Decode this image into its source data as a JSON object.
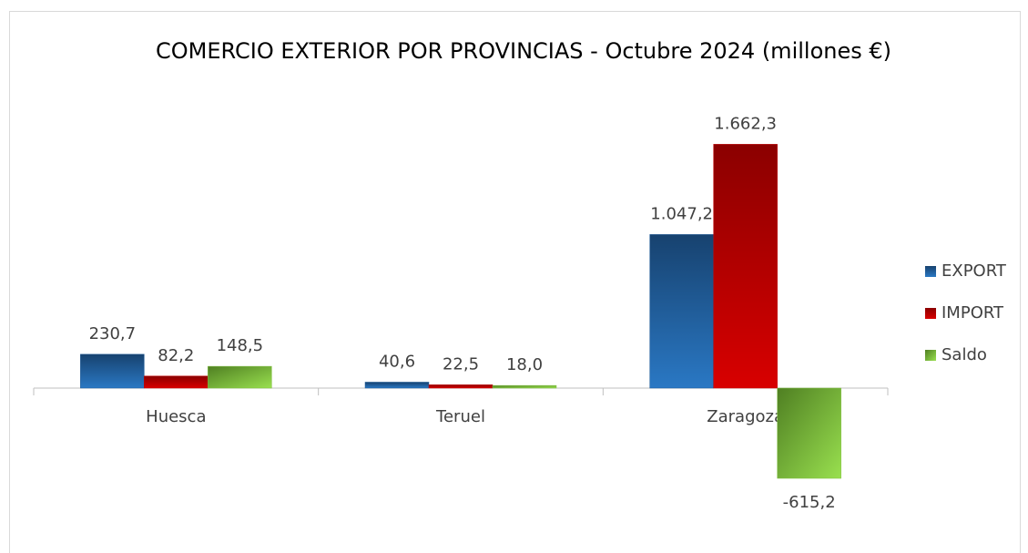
{
  "chart_data": {
    "type": "bar",
    "title": "COMERCIO EXTERIOR POR PROVINCIAS  - Octubre 2024 (millones €)",
    "categories": [
      "Huesca",
      "Teruel",
      "Zaragoza"
    ],
    "series": [
      {
        "name": "EXPORT",
        "color": "#1f5b98",
        "values": [
          230.7,
          40.6,
          1047.2
        ],
        "value_labels": [
          "230,7",
          "40,6",
          "1.047,2"
        ]
      },
      {
        "name": "IMPORT",
        "color": "#c00000",
        "values": [
          82.2,
          22.5,
          1662.3
        ],
        "value_labels": [
          "82,2",
          "22,5",
          "1.662,3"
        ]
      },
      {
        "name": "Saldo",
        "color": "#7fbf3f",
        "values": [
          148.5,
          18.0,
          -615.2
        ],
        "value_labels": [
          "148,5",
          "18,0",
          "-615,2"
        ]
      }
    ],
    "ylim": [
      -1000,
      2000
    ],
    "legend": "right"
  }
}
